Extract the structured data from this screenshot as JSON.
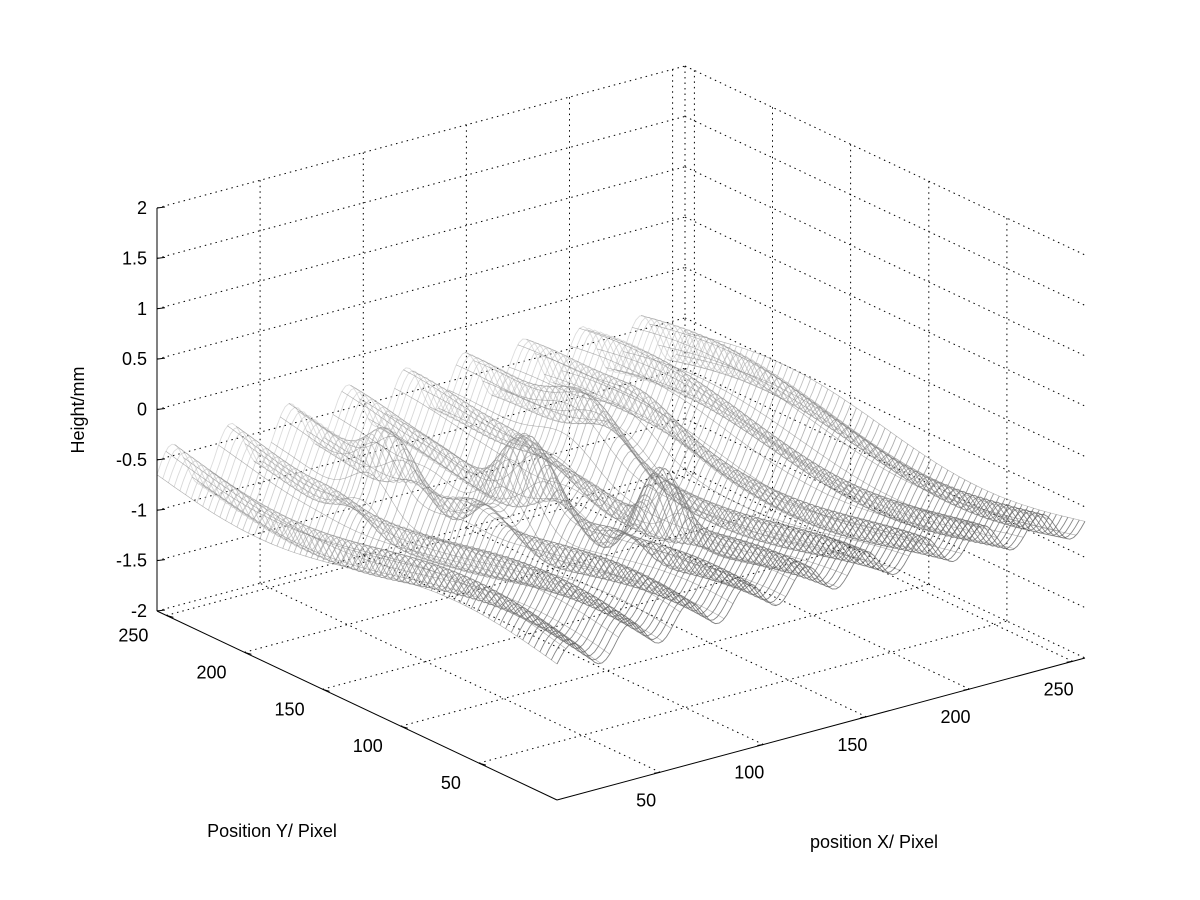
{
  "chart_data": {
    "type": "surface",
    "title": "",
    "xlabel": "position X/ Pixel",
    "ylabel": "Position Y/ Pixel",
    "zlabel": "Height/mm",
    "xlim": [
      0,
      256
    ],
    "ylim": [
      0,
      256
    ],
    "zlim": [
      -2,
      2
    ],
    "x_ticks": [
      50,
      100,
      150,
      200,
      250
    ],
    "x_tick_labels": [
      "50",
      "100",
      "150",
      "200",
      "250"
    ],
    "y_ticks": [
      50,
      100,
      150,
      200,
      250
    ],
    "y_tick_labels": [
      "50",
      "100",
      "150",
      "200",
      "250"
    ],
    "z_ticks": [
      -2,
      -1.5,
      -1,
      -0.5,
      0,
      0.5,
      1,
      1.5,
      2
    ],
    "z_tick_labels": [
      "-2",
      "-1.5",
      "-1",
      "-0.5",
      "0",
      "0.5",
      "1",
      "1.5",
      "2"
    ],
    "grid": true,
    "colormap": "gray",
    "colors": {
      "mesh_dark": "#2a2a2a",
      "mesh_light": "#cfcfcf",
      "axes": "#000000",
      "grid": "#000000"
    },
    "surface_description_values": {
      "ridge_count_along_x": 9,
      "base_height_range": [
        -0.9,
        -0.3
      ],
      "peak_height_max": 0.9
    }
  }
}
